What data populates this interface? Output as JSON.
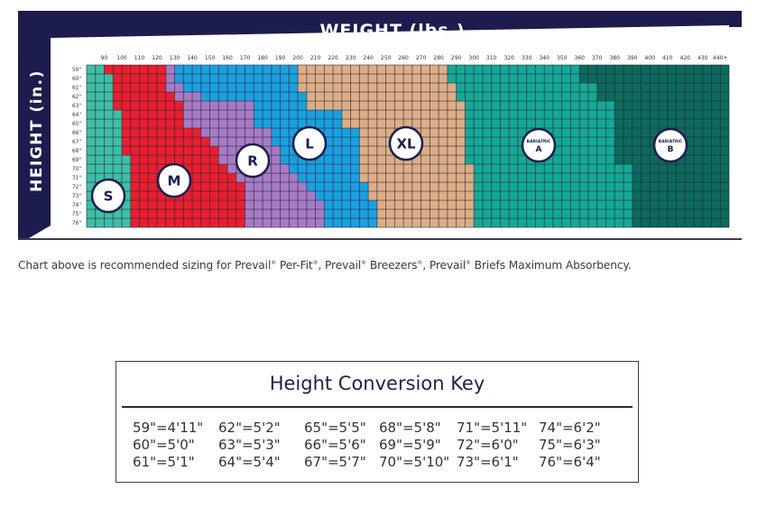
{
  "chart_data": {
    "type": "heatmap",
    "title": "WEIGHT (lbs.)",
    "xlabel": "WEIGHT (lbs.)",
    "ylabel": "HEIGHT (in.)",
    "x_range_lbs": [
      80,
      445
    ],
    "x_step_lbs": 5,
    "x_tick_labels": [
      "90",
      "100",
      "110",
      "120",
      "130",
      "140",
      "150",
      "160",
      "170",
      "180",
      "190",
      "200",
      "210",
      "220",
      "230",
      "240",
      "250",
      "260",
      "270",
      "280",
      "290",
      "300",
      "310",
      "320",
      "330",
      "340",
      "350",
      "360",
      "370",
      "380",
      "390",
      "400",
      "410",
      "420",
      "430",
      "440+"
    ],
    "y_tick_labels": [
      "59\"",
      "60\"",
      "61\"",
      "62\"",
      "63\"",
      "64\"",
      "65\"",
      "66\"",
      "67\"",
      "68\"",
      "69\"",
      "70\"",
      "71\"",
      "72\"",
      "73\"",
      "74\"",
      "75\"",
      "76\""
    ],
    "sizes": [
      {
        "label": "S",
        "sublabel": "",
        "color": "#3fbfa5"
      },
      {
        "label": "M",
        "sublabel": "",
        "color": "#e8202f"
      },
      {
        "label": "R",
        "sublabel": "",
        "color": "#a77cc6"
      },
      {
        "label": "L",
        "sublabel": "",
        "color": "#1aa0df"
      },
      {
        "label": "XL",
        "sublabel": "",
        "color": "#dcae86"
      },
      {
        "label": "A",
        "sublabel": "BARIATRIC",
        "color": "#14a995"
      },
      {
        "label": "B",
        "sublabel": "BARIATRIC",
        "color": "#0b6b5c"
      }
    ],
    "size_start_lbs_by_height": {
      "note_order": [
        "M",
        "R",
        "L",
        "XL",
        "A",
        "B"
      ],
      "rows": [
        [
          90,
          125,
          130,
          200,
          285,
          360
        ],
        [
          95,
          125,
          130,
          200,
          285,
          360
        ],
        [
          95,
          125,
          135,
          200,
          290,
          370
        ],
        [
          95,
          130,
          145,
          205,
          290,
          370
        ],
        [
          95,
          135,
          175,
          205,
          295,
          380
        ],
        [
          100,
          135,
          175,
          225,
          295,
          380
        ],
        [
          100,
          135,
          175,
          225,
          295,
          380
        ],
        [
          100,
          145,
          185,
          235,
          295,
          380
        ],
        [
          100,
          150,
          185,
          235,
          295,
          380
        ],
        [
          100,
          155,
          190,
          235,
          295,
          380
        ],
        [
          105,
          155,
          190,
          235,
          295,
          380
        ],
        [
          105,
          160,
          195,
          235,
          300,
          390
        ],
        [
          105,
          165,
          200,
          235,
          300,
          390
        ],
        [
          105,
          170,
          205,
          240,
          300,
          390
        ],
        [
          105,
          170,
          210,
          240,
          300,
          390
        ],
        [
          105,
          170,
          215,
          245,
          300,
          390
        ],
        [
          105,
          170,
          215,
          245,
          300,
          390
        ],
        [
          105,
          170,
          215,
          245,
          300,
          390
        ]
      ]
    }
  },
  "caption": {
    "pre": "Chart above is recommended sizing for Prevail",
    "p1": " Per-Fit",
    "p2": ", Prevail",
    "p3": " Breezers",
    "p4": ", Prevail",
    "p5": " Briefs Maximum Absorbency.",
    "reg": "®"
  },
  "colors": {
    "navy": "#1c1d4e",
    "grid_line": "#2a1f3a"
  },
  "conversion_key": {
    "title": "Height Conversion Key",
    "columns": [
      [
        "59\"=4'11\"",
        "60\"=5'0\"",
        "61\"=5'1\""
      ],
      [
        "62\"=5'2\"",
        "63\"=5'3\"",
        "64\"=5'4\""
      ],
      [
        "65\"=5'5\"",
        "66\"=5'6\"",
        "67\"=5'7\""
      ],
      [
        "68\"=5'8\"",
        "69\"=5'9\"",
        "70\"=5'10\""
      ],
      [
        "71\"=5'11\"",
        "72\"=6'0\"",
        "73\"=6'1\""
      ],
      [
        "74\"=6'2\"",
        "75\"=6'3\"",
        "76\"=6'4\""
      ]
    ]
  }
}
